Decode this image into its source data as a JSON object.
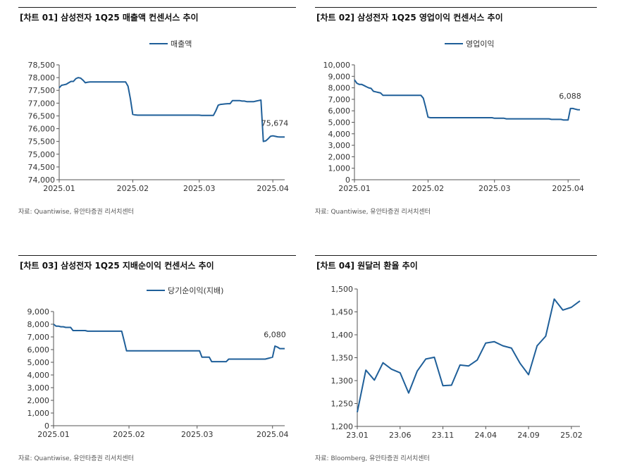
{
  "chart_data": [
    {
      "id": "c1",
      "type": "line",
      "title": "[차트 01] 삼성전자 1Q25 매출액 컨센서스 추이",
      "source": "자료: Quantiwise, 유안타증권 리서치센터",
      "legend": "매출액",
      "legend_position": "top-center",
      "series_color": "#1f5f99",
      "yticks": [
        "74,000",
        "74,500",
        "75,000",
        "75,500",
        "76,000",
        "76,500",
        "77,000",
        "77,500",
        "78,000",
        "78,500"
      ],
      "ylim": [
        74000,
        78500
      ],
      "xticks": [
        "2025.01",
        "2025.02",
        "2025.03",
        "2025.04"
      ],
      "xtick_pos": [
        0,
        31,
        59,
        90
      ],
      "xlim": [
        0,
        95
      ],
      "last_label": "75,674",
      "x": [
        0,
        1,
        2,
        3,
        4,
        5,
        6,
        7,
        8,
        9,
        10,
        11,
        12,
        13,
        14,
        15,
        16,
        17,
        18,
        19,
        20,
        21,
        22,
        23,
        24,
        25,
        26,
        27,
        28,
        29,
        30,
        31,
        32,
        33,
        34,
        35,
        36,
        37,
        38,
        39,
        40,
        41,
        42,
        43,
        44,
        45,
        46,
        47,
        48,
        49,
        50,
        51,
        52,
        53,
        54,
        55,
        56,
        57,
        58,
        59,
        60,
        61,
        62,
        63,
        64,
        65,
        66,
        67,
        68,
        69,
        70,
        71,
        72,
        73,
        74,
        75,
        76,
        77,
        78,
        79,
        80,
        81,
        82,
        83,
        84,
        85,
        86,
        87,
        88,
        89,
        90,
        91,
        92,
        93,
        94,
        95
      ],
      "y": [
        77600,
        77700,
        77720,
        77740,
        77800,
        77850,
        77850,
        77960,
        78000,
        77980,
        77900,
        77800,
        77820,
        77830,
        77830,
        77830,
        77830,
        77830,
        77830,
        77830,
        77830,
        77830,
        77830,
        77830,
        77830,
        77830,
        77830,
        77830,
        77830,
        77660,
        77160,
        76560,
        76540,
        76530,
        76530,
        76530,
        76530,
        76530,
        76530,
        76530,
        76530,
        76530,
        76530,
        76530,
        76530,
        76530,
        76530,
        76530,
        76530,
        76530,
        76530,
        76530,
        76530,
        76530,
        76530,
        76530,
        76530,
        76530,
        76530,
        76530,
        76520,
        76520,
        76520,
        76520,
        76520,
        76520,
        76700,
        76920,
        76950,
        76960,
        76970,
        76980,
        76980,
        77100,
        77100,
        77100,
        77100,
        77080,
        77080,
        77060,
        77060,
        77060,
        77060,
        77080,
        77100,
        77120,
        75500,
        75520,
        75600,
        75700,
        75720,
        75700,
        75680,
        75674,
        75674,
        75674
      ]
    },
    {
      "id": "c2",
      "type": "line",
      "title": "[차트 02] 삼성전자 1Q25 영업이익 컨센서스 추이",
      "source": "자료: Quantiwise, 유안타증권 리서치센터",
      "legend": "영업이익",
      "legend_position": "top-center",
      "series_color": "#1f5f99",
      "yticks": [
        "0",
        "1,000",
        "2,000",
        "3,000",
        "4,000",
        "5,000",
        "6,000",
        "7,000",
        "8,000",
        "9,000",
        "10,000"
      ],
      "ylim": [
        0,
        10000
      ],
      "xticks": [
        "2025.01",
        "2025.02",
        "2025.03",
        "2025.04"
      ],
      "xtick_pos": [
        0,
        31,
        59,
        90
      ],
      "xlim": [
        0,
        95
      ],
      "last_label": "6,088",
      "x": [
        0,
        1,
        2,
        3,
        4,
        5,
        6,
        7,
        8,
        9,
        10,
        11,
        12,
        13,
        14,
        15,
        16,
        17,
        18,
        19,
        20,
        21,
        22,
        23,
        24,
        25,
        26,
        27,
        28,
        29,
        30,
        31,
        32,
        33,
        34,
        35,
        36,
        37,
        38,
        39,
        40,
        41,
        42,
        43,
        44,
        45,
        46,
        47,
        48,
        49,
        50,
        51,
        52,
        53,
        54,
        55,
        56,
        57,
        58,
        59,
        60,
        61,
        62,
        63,
        64,
        65,
        66,
        67,
        68,
        69,
        70,
        71,
        72,
        73,
        74,
        75,
        76,
        77,
        78,
        79,
        80,
        81,
        82,
        83,
        84,
        85,
        86,
        87,
        88,
        89,
        90,
        91,
        92,
        93,
        94,
        95
      ],
      "y": [
        8700,
        8400,
        8300,
        8300,
        8200,
        8100,
        8000,
        7950,
        7700,
        7650,
        7600,
        7550,
        7350,
        7350,
        7350,
        7350,
        7350,
        7350,
        7350,
        7350,
        7350,
        7350,
        7350,
        7350,
        7350,
        7350,
        7350,
        7350,
        7350,
        7100,
        6300,
        5450,
        5400,
        5400,
        5400,
        5400,
        5400,
        5400,
        5400,
        5400,
        5400,
        5400,
        5400,
        5400,
        5400,
        5400,
        5400,
        5400,
        5400,
        5400,
        5400,
        5400,
        5400,
        5400,
        5400,
        5400,
        5400,
        5400,
        5400,
        5350,
        5350,
        5350,
        5350,
        5350,
        5300,
        5300,
        5300,
        5300,
        5300,
        5300,
        5300,
        5300,
        5300,
        5300,
        5300,
        5300,
        5300,
        5300,
        5300,
        5300,
        5300,
        5300,
        5300,
        5250,
        5250,
        5250,
        5250,
        5250,
        5200,
        5200,
        5200,
        6200,
        6200,
        6150,
        6100,
        6088
      ]
    },
    {
      "id": "c3",
      "type": "line",
      "title": "[차트 03] 삼성전자 1Q25 지배순이익 컨센서스 추이",
      "source": "자료: Quantiwise, 유안타증권 리서치센터",
      "legend": "당기순이익(지배)",
      "legend_position": "top-center",
      "series_color": "#1f5f99",
      "yticks": [
        "0",
        "1,000",
        "2,000",
        "3,000",
        "4,000",
        "5,000",
        "6,000",
        "7,000",
        "8,000",
        "9,000"
      ],
      "ylim": [
        0,
        9000
      ],
      "xticks": [
        "2025.01",
        "2025.02",
        "2025.03",
        "2025.04"
      ],
      "xtick_pos": [
        0,
        31,
        59,
        90
      ],
      "xlim": [
        0,
        95
      ],
      "last_label": "6,080",
      "x": [
        0,
        1,
        2,
        3,
        4,
        5,
        6,
        7,
        8,
        9,
        10,
        11,
        12,
        13,
        14,
        15,
        16,
        17,
        18,
        19,
        20,
        21,
        22,
        23,
        24,
        25,
        26,
        27,
        28,
        29,
        30,
        31,
        32,
        33,
        34,
        35,
        36,
        37,
        38,
        39,
        40,
        41,
        42,
        43,
        44,
        45,
        46,
        47,
        48,
        49,
        50,
        51,
        52,
        53,
        54,
        55,
        56,
        57,
        58,
        59,
        60,
        61,
        62,
        63,
        64,
        65,
        66,
        67,
        68,
        69,
        70,
        71,
        72,
        73,
        74,
        75,
        76,
        77,
        78,
        79,
        80,
        81,
        82,
        83,
        84,
        85,
        86,
        87,
        88,
        89,
        90,
        91,
        92,
        93,
        94,
        95
      ],
      "y": [
        8000,
        7850,
        7850,
        7800,
        7800,
        7750,
        7750,
        7750,
        7500,
        7500,
        7500,
        7500,
        7500,
        7500,
        7450,
        7450,
        7450,
        7450,
        7450,
        7450,
        7450,
        7450,
        7450,
        7450,
        7450,
        7450,
        7450,
        7450,
        7450,
        6700,
        5900,
        5900,
        5900,
        5900,
        5900,
        5900,
        5900,
        5900,
        5900,
        5900,
        5900,
        5900,
        5900,
        5900,
        5900,
        5900,
        5900,
        5900,
        5900,
        5900,
        5900,
        5900,
        5900,
        5900,
        5900,
        5900,
        5900,
        5900,
        5900,
        5900,
        5900,
        5400,
        5400,
        5400,
        5400,
        5050,
        5050,
        5050,
        5050,
        5050,
        5050,
        5050,
        5250,
        5250,
        5250,
        5250,
        5250,
        5250,
        5250,
        5250,
        5250,
        5250,
        5250,
        5250,
        5250,
        5250,
        5250,
        5250,
        5300,
        5350,
        5400,
        6280,
        6200,
        6080,
        6080,
        6080
      ]
    },
    {
      "id": "c4",
      "type": "line",
      "title": "[차트 04] 원달러 환율 추이",
      "source": "자료: Bloomberg, 유안타증권 리서치센터",
      "legend": "",
      "series_color": "#1f5f99",
      "yticks": [
        "1,200",
        "1,250",
        "1,300",
        "1,350",
        "1,400",
        "1,450",
        "1,500"
      ],
      "ylim": [
        1200,
        1500
      ],
      "xticks": [
        "23.01",
        "23.06",
        "23.11",
        "24.04",
        "24.09",
        "25.02"
      ],
      "xtick_pos": [
        0,
        5,
        10,
        15,
        20,
        25
      ],
      "xlim": [
        0,
        26
      ],
      "last_label": "",
      "x": [
        0,
        1,
        2,
        3,
        4,
        5,
        6,
        7,
        8,
        9,
        10,
        11,
        12,
        13,
        14,
        15,
        16,
        17,
        18,
        19,
        20,
        21,
        22,
        23,
        24,
        25,
        26
      ],
      "y": [
        1231,
        1323,
        1301,
        1339,
        1325,
        1317,
        1273,
        1321,
        1347,
        1351,
        1289,
        1290,
        1334,
        1332,
        1345,
        1382,
        1385,
        1376,
        1371,
        1338,
        1313,
        1376,
        1397,
        1478,
        1454,
        1460,
        1474
      ]
    }
  ]
}
